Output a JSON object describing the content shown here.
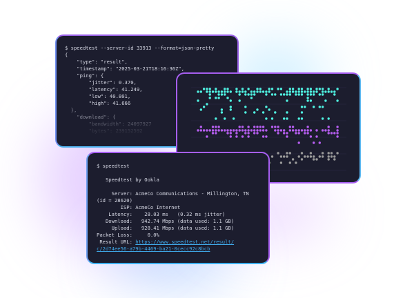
{
  "json_terminal": {
    "command": "$ speedtest --server-id 33913 --format=json-pretty",
    "lines": [
      "{",
      "    \"type\": \"result\",",
      "    \"timestamp\": \"2025-03-21T18:16:36Z\",",
      "    \"ping\": {",
      "        \"jitter\": 0.370,",
      "        \"latency\": 41.249,",
      "        \"low\": 40.801,",
      "        \"high\": 41.666",
      "  },",
      "    \"download\": {",
      "        \"bandwidth\": 24097927",
      "        \"bytes\": 239152592"
    ]
  },
  "dot_chart": {
    "series_colors": [
      "#4ff0e0",
      "#b65ef0",
      "#9a9a9a"
    ],
    "grid_color": "#2a2d45"
  },
  "cli_terminal": {
    "command": "$ speedtest",
    "heading": "   Speedtest by Ookla",
    "lines": [
      "     Server: AcmeCo Communications - Millington, TN",
      "(id = 28620)",
      "        ISP: AcmeCo Internet",
      "    Latency:    28.03 ms   (0.32 ms jitter)",
      "   Download:   942.74 Mbps (data used: 1.1 GB)",
      "     Upload:   928.41 Mbps (data used: 1.1 GB)",
      "Packet Loss:     0.0%"
    ],
    "result_label": " Result URL: ",
    "result_url_1": "https://www.speedtest.net/result/",
    "result_url_2": "c/2d74ee56-a79b-4469-ba21-0cecc92c8bcb"
  }
}
